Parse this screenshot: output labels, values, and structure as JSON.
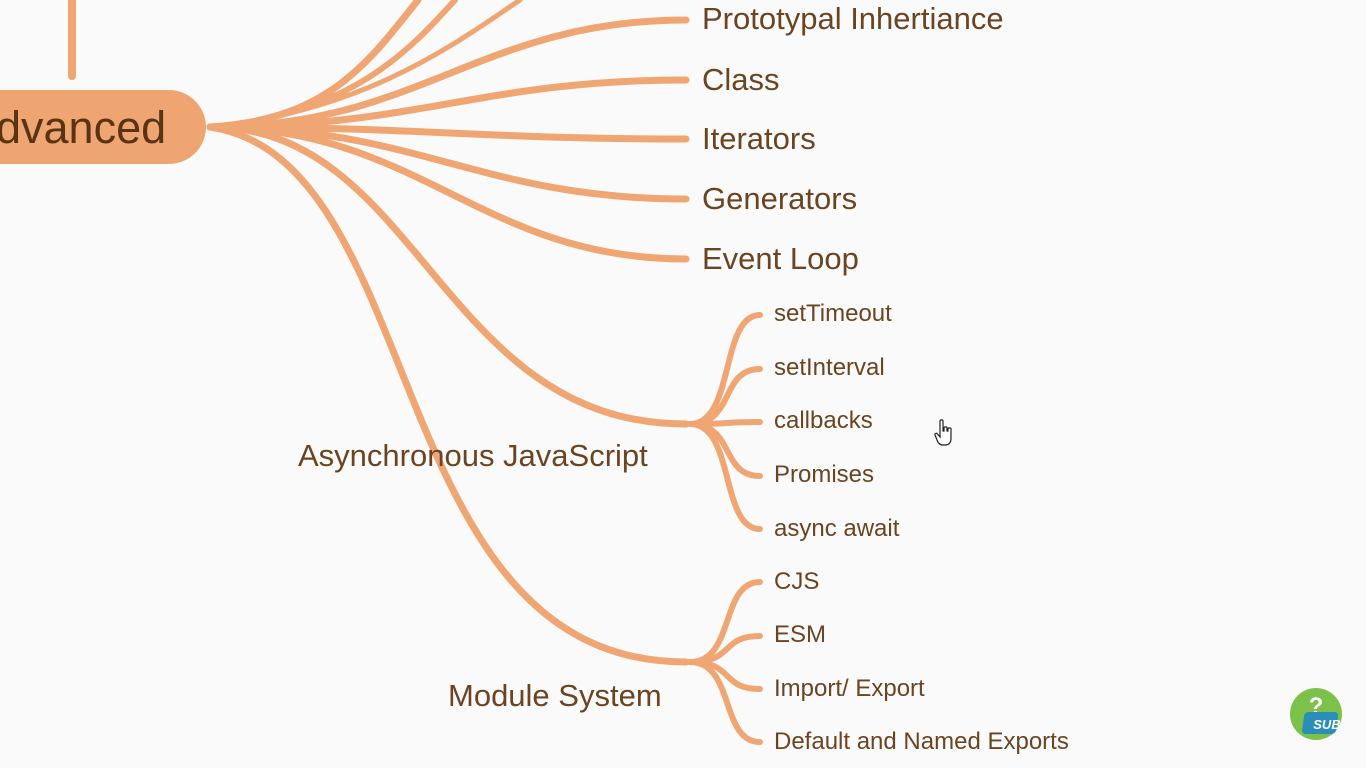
{
  "mindmap": {
    "root": {
      "label": "dvanced"
    },
    "branches": [
      {
        "label": "Prototypal Inhertiance"
      },
      {
        "label": "Class"
      },
      {
        "label": "Iterators"
      },
      {
        "label": "Generators"
      },
      {
        "label": "Event Loop"
      },
      {
        "label": "Asynchronous JavaScript",
        "children": [
          {
            "label": "setTimeout"
          },
          {
            "label": "setInterval"
          },
          {
            "label": "callbacks"
          },
          {
            "label": "Promises"
          },
          {
            "label": "async await"
          }
        ]
      },
      {
        "label": "Module System",
        "children": [
          {
            "label": "CJS"
          },
          {
            "label": "ESM"
          },
          {
            "label": "Import/ Export"
          },
          {
            "label": "Default and Named Exports"
          }
        ]
      }
    ]
  },
  "colors": {
    "branch": "#f0a673",
    "node_fill": "#eea572",
    "text": "#6b4422",
    "background": "#fafafa",
    "badge_green": "#7cc24a",
    "badge_blue": "#2a8fb8"
  },
  "badge": {
    "label": "SUB",
    "icon": "subscribe-badge-icon"
  },
  "cursor": {
    "icon": "hand-pointer-icon"
  }
}
